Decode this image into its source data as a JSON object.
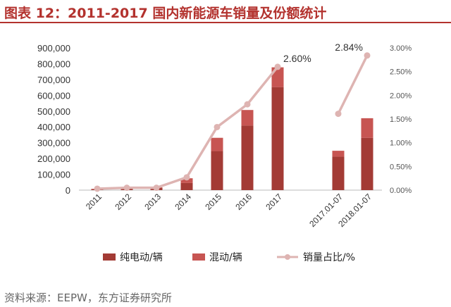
{
  "header": {
    "title": "图表 12：2011-2017 国内新能源车销量及份额统计"
  },
  "footer": {
    "source": "资料来源：EEPW，东方证券研究所"
  },
  "colors": {
    "title": "#b3322e",
    "pure_ev": "#a33b35",
    "hybrid": "#c75552",
    "share_line": "#deb4b2",
    "axis_text": "#555555"
  },
  "chart_data": {
    "type": "bar",
    "stacked": true,
    "categories": [
      "2011",
      "2012",
      "2013",
      "2014",
      "2015",
      "2016",
      "2017",
      "2017.01-07",
      "2018.01-07"
    ],
    "gap_before_index": 7,
    "series": [
      {
        "name": "纯电动/辆",
        "axis": "left",
        "values": [
          5600,
          11400,
          14600,
          45000,
          247000,
          409000,
          652000,
          212000,
          331000
        ]
      },
      {
        "name": "混动/辆",
        "axis": "left",
        "values": [
          2800,
          1600,
          3100,
          30000,
          84000,
          98000,
          125000,
          37000,
          124000
        ]
      },
      {
        "name": "销量占比/%",
        "type": "line",
        "axis": "right",
        "values": [
          0.03,
          0.05,
          0.05,
          0.27,
          1.33,
          1.81,
          2.6,
          1.61,
          2.84
        ]
      }
    ],
    "annotations": [
      {
        "category": "2017",
        "text": "2.60%"
      },
      {
        "category": "2018.01-07",
        "text": "2.84%"
      }
    ],
    "y_left": {
      "lim": [
        0,
        900000
      ],
      "ticks": [
        "900,000",
        "800,000",
        "700,000",
        "600,000",
        "500,000",
        "400,000",
        "300,000",
        "200,000",
        "100,000",
        "0"
      ]
    },
    "y_right": {
      "lim": [
        0,
        3.0
      ],
      "ticks": [
        "3.00%",
        "2.50%",
        "2.00%",
        "1.50%",
        "1.00%",
        "0.50%",
        "0.00%"
      ]
    },
    "legend": {
      "placement": "bottom",
      "items": [
        "纯电动/辆",
        "混动/辆",
        "销量占比/%"
      ]
    },
    "grid": false
  }
}
